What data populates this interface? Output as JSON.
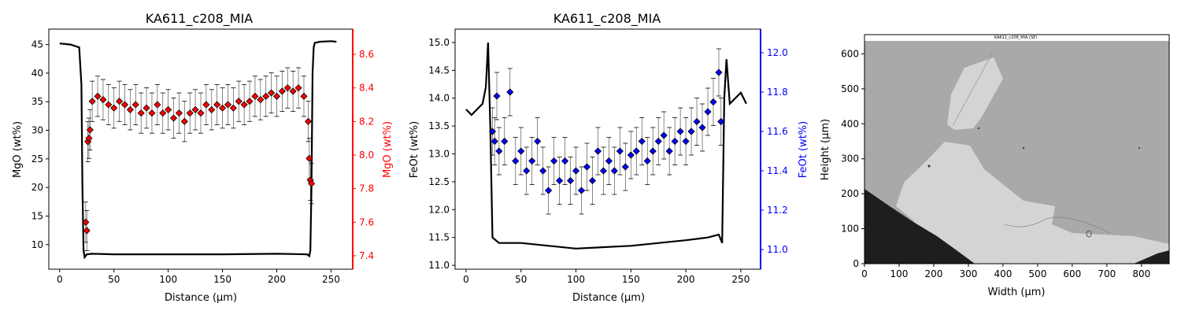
{
  "chart_data": [
    {
      "type": "line",
      "title": "KA611_c208_MIA",
      "xlabel": "Distance (µm)",
      "ylabel_left": "MgO (wt%)",
      "ylabel_right": "MgO (wt%)",
      "xlim": [
        -10,
        270
      ],
      "ylim_left": [
        5.7,
        47.7
      ],
      "ylim_right": [
        7.32,
        8.75
      ],
      "xticks": [
        0,
        50,
        100,
        150,
        200,
        250
      ],
      "yticks_left": [
        10,
        15,
        20,
        25,
        30,
        35,
        40,
        45
      ],
      "yticks_right": [
        7.4,
        7.6,
        7.8,
        8.0,
        8.2,
        8.4,
        8.6
      ],
      "right_axis_color": "#ff0000",
      "series": [
        {
          "axis": "left",
          "style": "black line",
          "x": [
            0,
            10,
            18,
            20,
            21,
            22,
            23,
            25,
            30,
            50,
            100,
            150,
            200,
            228,
            230,
            231,
            232,
            233,
            234,
            235,
            240,
            250,
            255
          ],
          "y": [
            45.2,
            45.0,
            44.5,
            38.0,
            20.0,
            9.0,
            7.8,
            8.3,
            8.4,
            8.3,
            8.3,
            8.3,
            8.4,
            8.3,
            8.0,
            9.0,
            20.0,
            40.0,
            44.5,
            45.3,
            45.5,
            45.6,
            45.5
          ]
        },
        {
          "axis": "right",
          "style": "red diamonds with error bars",
          "error": 0.12,
          "x": [
            24,
            25,
            26,
            27,
            28,
            30,
            35,
            40,
            45,
            50,
            55,
            60,
            65,
            70,
            75,
            80,
            85,
            90,
            95,
            100,
            105,
            110,
            115,
            120,
            125,
            130,
            135,
            140,
            145,
            150,
            155,
            160,
            165,
            170,
            175,
            180,
            185,
            190,
            195,
            200,
            205,
            210,
            215,
            220,
            225,
            229,
            230,
            231,
            232
          ],
          "y": [
            7.6,
            7.55,
            8.08,
            8.1,
            8.15,
            8.32,
            8.35,
            8.33,
            8.3,
            8.28,
            8.32,
            8.3,
            8.27,
            8.3,
            8.25,
            8.28,
            8.25,
            8.3,
            8.25,
            8.27,
            8.22,
            8.25,
            8.2,
            8.25,
            8.27,
            8.25,
            8.3,
            8.27,
            8.3,
            8.28,
            8.3,
            8.28,
            8.32,
            8.3,
            8.32,
            8.35,
            8.33,
            8.35,
            8.37,
            8.35,
            8.38,
            8.4,
            8.38,
            8.4,
            8.35,
            8.2,
            7.98,
            7.85,
            7.83
          ]
        }
      ]
    },
    {
      "type": "line",
      "title": "KA611_c208_MIA",
      "xlabel": "Distance (µm)",
      "ylabel_left": "FeOt (wt%)",
      "ylabel_right": "FeOt (wt%)",
      "xlim": [
        -10,
        268
      ],
      "ylim_left": [
        10.93,
        15.24
      ],
      "ylim_right": [
        10.9,
        12.12
      ],
      "xticks": [
        0,
        50,
        100,
        150,
        200,
        250
      ],
      "yticks_left": [
        11.0,
        11.5,
        12.0,
        12.5,
        13.0,
        13.5,
        14.0,
        14.5,
        15.0
      ],
      "yticks_right": [
        11.0,
        11.2,
        11.4,
        11.6,
        11.8,
        12.0
      ],
      "right_axis_color": "#0000ff",
      "series": [
        {
          "axis": "left",
          "style": "black line",
          "x": [
            0,
            5,
            10,
            15,
            18,
            20,
            22,
            24,
            30,
            50,
            100,
            150,
            200,
            220,
            230,
            233,
            235,
            237,
            240,
            250,
            255
          ],
          "y": [
            13.8,
            13.7,
            13.8,
            13.9,
            14.2,
            15.0,
            13.5,
            11.5,
            11.4,
            11.4,
            11.3,
            11.35,
            11.45,
            11.5,
            11.55,
            11.4,
            14.0,
            14.7,
            13.9,
            14.1,
            13.9
          ]
        },
        {
          "axis": "right",
          "style": "blue diamonds with error bars",
          "error": 0.12,
          "x": [
            24,
            26,
            28,
            30,
            35,
            40,
            45,
            50,
            55,
            60,
            65,
            70,
            75,
            80,
            85,
            90,
            95,
            100,
            105,
            110,
            115,
            120,
            125,
            130,
            135,
            140,
            145,
            150,
            155,
            160,
            165,
            170,
            175,
            180,
            185,
            190,
            195,
            200,
            205,
            210,
            215,
            220,
            225,
            230,
            232
          ],
          "y": [
            11.6,
            11.55,
            11.78,
            11.5,
            11.55,
            11.8,
            11.45,
            11.5,
            11.4,
            11.45,
            11.55,
            11.4,
            11.3,
            11.45,
            11.35,
            11.45,
            11.35,
            11.4,
            11.3,
            11.42,
            11.35,
            11.5,
            11.4,
            11.45,
            11.4,
            11.5,
            11.42,
            11.48,
            11.5,
            11.55,
            11.45,
            11.5,
            11.55,
            11.58,
            11.5,
            11.55,
            11.6,
            11.55,
            11.6,
            11.65,
            11.62,
            11.7,
            11.75,
            11.9,
            11.65
          ]
        }
      ]
    },
    {
      "type": "image",
      "title": "",
      "xlabel": "Width (µm)",
      "ylabel": "Height (µm)",
      "xlim": [
        0,
        880
      ],
      "ylim": [
        0,
        655
      ],
      "xticks": [
        0,
        100,
        200,
        300,
        400,
        500,
        600,
        700,
        800
      ],
      "yticks": [
        0,
        100,
        200,
        300,
        400,
        500,
        600
      ],
      "image_caption": "KA611_c208_MIA (SE)",
      "colors": {
        "background": "#a9a9a9",
        "crystal": "#d4d4d4",
        "resin": "#1e1e1e"
      }
    }
  ]
}
